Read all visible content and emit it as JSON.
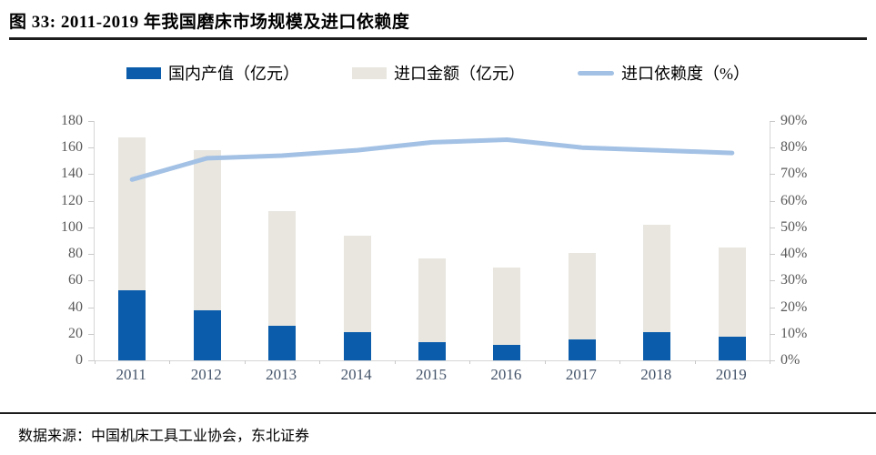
{
  "title": "图 33: 2011-2019 年我国磨床市场规模及进口依赖度",
  "source": "数据来源：中国机床工具工业协会，东北证券",
  "colors": {
    "domestic_bar": "#0b5dab",
    "import_bar": "#e8e6df",
    "dependency_line": "#a3c1e4",
    "axis_line": "#d6d6d6",
    "y_label": "#595959",
    "x_label": "#44546a",
    "rule": "#1c1c1c"
  },
  "legend": {
    "items": [
      {
        "label": "国内产值（亿元）",
        "swatch": "bar",
        "color": "#0b5dab"
      },
      {
        "label": "进口金额（亿元）",
        "swatch": "bar",
        "color": "#e8e6df"
      },
      {
        "label": "进口依赖度（%）",
        "swatch": "line",
        "color": "#a3c1e4"
      }
    ]
  },
  "chart_data": {
    "type": "bar",
    "subtype": "stacked-bars-with-line-overlay",
    "title": "2011-2019 年我国磨床市场规模及进口依赖度",
    "categories": [
      "2011",
      "2012",
      "2013",
      "2014",
      "2015",
      "2016",
      "2017",
      "2018",
      "2019"
    ],
    "series": [
      {
        "name": "国内产值（亿元）",
        "type": "bar",
        "axis": "left",
        "color": "#0b5dab",
        "values": [
          53,
          38,
          26,
          21,
          14,
          12,
          16,
          21,
          18
        ]
      },
      {
        "name": "进口金额（亿元）",
        "type": "bar",
        "axis": "left",
        "stacked_on": "国内产值（亿元）",
        "color": "#e8e6df",
        "values": [
          115,
          120,
          86,
          73,
          63,
          58,
          65,
          81,
          67
        ]
      },
      {
        "name": "进口依赖度（%）",
        "type": "line",
        "axis": "right",
        "color": "#a3c1e4",
        "values": [
          68,
          76,
          77,
          79,
          82,
          83,
          80,
          79,
          78
        ]
      }
    ],
    "stacked_totals": [
      168,
      158,
      112,
      94,
      77,
      70,
      81,
      102,
      85
    ],
    "left_axis": {
      "min": 0,
      "max": 180,
      "step": 20,
      "tick_labels": [
        "180",
        "160",
        "140",
        "120",
        "100",
        "80",
        "60",
        "40",
        "20",
        "0"
      ]
    },
    "right_axis": {
      "min": 0,
      "max": 90,
      "step": 10,
      "tick_labels": [
        "90%",
        "80%",
        "70%",
        "60%",
        "50%",
        "40%",
        "30%",
        "20%",
        "10%",
        "0%"
      ]
    },
    "grid": false,
    "legend_position": "top"
  }
}
